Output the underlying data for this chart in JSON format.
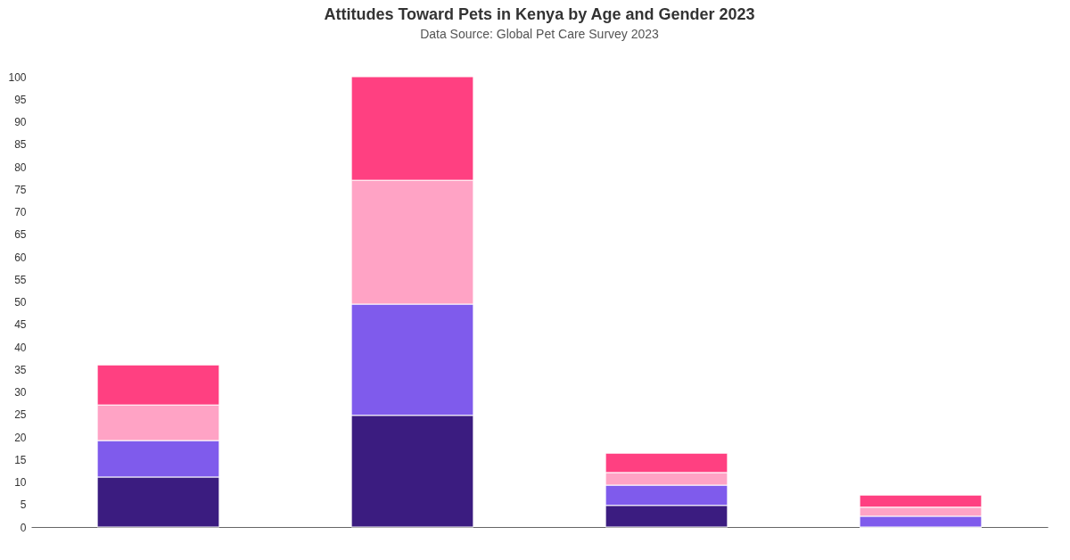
{
  "chart_data": {
    "type": "bar",
    "title": "Attitudes Toward Pets in Kenya by Age and Gender 2023",
    "subtitle": "Data Source: Global Pet Care Survey 2023",
    "categories": [
      null,
      null,
      null,
      null
    ],
    "stacked": true,
    "series": [
      {
        "color": "#3b1c80",
        "values": [
          11.1,
          24.8,
          4.8,
          0
        ]
      },
      {
        "color": "#7f5bec",
        "values": [
          8.1,
          24.7,
          4.5,
          2.4
        ]
      },
      {
        "color": "#ffa3c5",
        "values": [
          7.9,
          27.5,
          2.8,
          2.0
        ]
      },
      {
        "color": "#ff4081",
        "values": [
          8.9,
          23.0,
          4.3,
          2.7
        ]
      }
    ],
    "ylim": [
      0,
      100
    ],
    "yticks": [
      0,
      5,
      10,
      15,
      20,
      25,
      30,
      35,
      40,
      45,
      50,
      55,
      60,
      65,
      70,
      75,
      80,
      85,
      90,
      95,
      100
    ],
    "tick_labels": "y"
  }
}
